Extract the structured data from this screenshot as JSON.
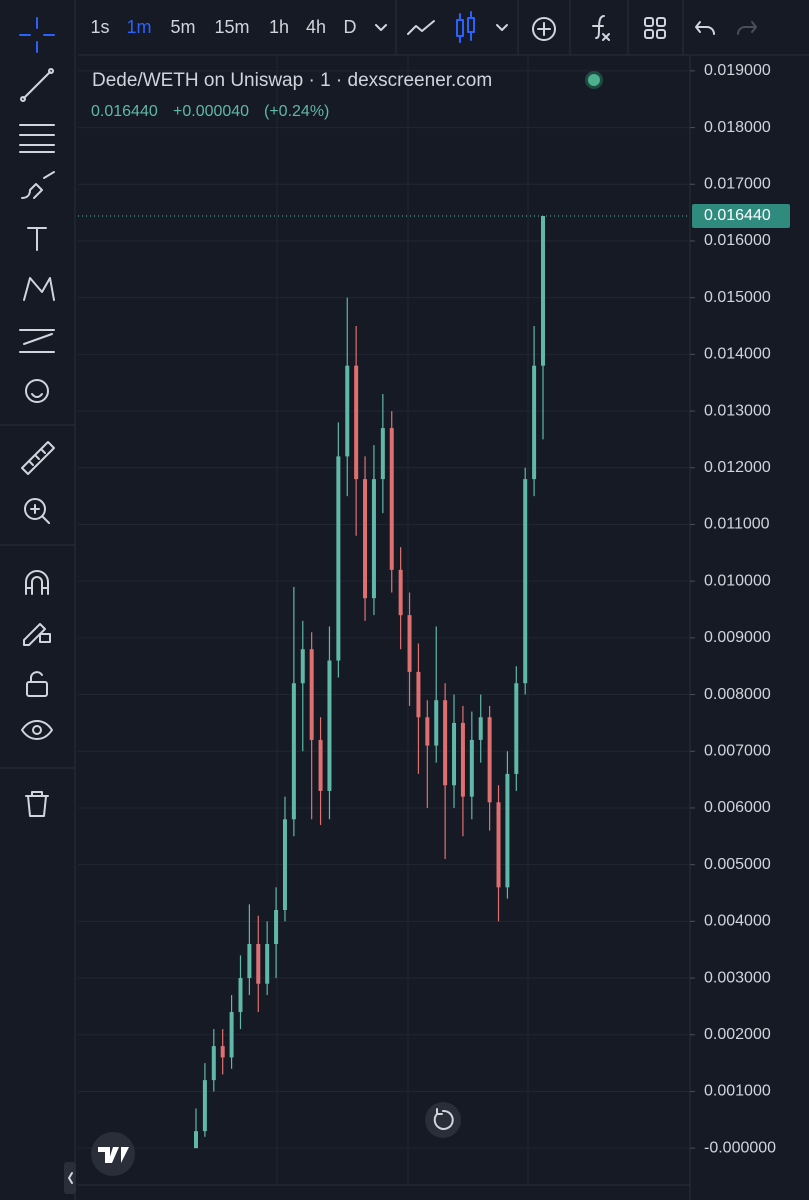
{
  "toolbar": {
    "intervals": [
      "1s",
      "1m",
      "5m",
      "15m",
      "1h",
      "4h",
      "D"
    ],
    "active_interval": 1
  },
  "chart_data": {
    "type": "candlestick",
    "title": "Dede/WETH on Uniswap · 1 · dexscreener.com",
    "last_price": {
      "value": 0.01644,
      "label": "0.016440"
    },
    "change": "+0.000040",
    "change_pct": "(+0.24%)",
    "up_color": "#5fb8a8",
    "down_color": "#e07070",
    "open": [
      0.0,
      0.0003,
      0.0012,
      0.0018,
      0.0016,
      0.0024,
      0.003,
      0.0036,
      0.0029,
      0.0036,
      0.0042,
      0.0058,
      0.0082,
      0.0088,
      0.0072,
      0.0063,
      0.0086,
      0.0122,
      0.0138,
      0.0118,
      0.0097,
      0.0118,
      0.0127,
      0.0102,
      0.0094,
      0.0084,
      0.0076,
      0.0071,
      0.0079,
      0.0064,
      0.0075,
      0.0062,
      0.0072,
      0.0076,
      0.0061,
      0.0046,
      0.0066,
      0.0082,
      0.0118,
      0.0138
    ],
    "high": [
      0.0007,
      0.0015,
      0.0021,
      0.0021,
      0.0027,
      0.0034,
      0.0043,
      0.0041,
      0.004,
      0.0046,
      0.0062,
      0.0099,
      0.0093,
      0.0091,
      0.0076,
      0.0092,
      0.0128,
      0.015,
      0.0145,
      0.0122,
      0.0124,
      0.0133,
      0.013,
      0.0106,
      0.0098,
      0.0089,
      0.0079,
      0.0092,
      0.0082,
      0.008,
      0.0078,
      0.0077,
      0.008,
      0.0078,
      0.0064,
      0.007,
      0.0085,
      0.012,
      0.0145,
      0.01644
    ],
    "low": [
      0.0,
      0.0002,
      0.001,
      0.0013,
      0.0014,
      0.0021,
      0.0027,
      0.0024,
      0.0027,
      0.003,
      0.004,
      0.0055,
      0.007,
      0.0058,
      0.0057,
      0.0058,
      0.0083,
      0.0115,
      0.0108,
      0.0093,
      0.0094,
      0.0112,
      0.0098,
      0.0088,
      0.0078,
      0.0066,
      0.006,
      0.0068,
      0.0051,
      0.006,
      0.0055,
      0.0058,
      0.0068,
      0.0056,
      0.004,
      0.0044,
      0.0063,
      0.008,
      0.0115,
      0.0125
    ],
    "close": [
      0.0003,
      0.0012,
      0.0018,
      0.0016,
      0.0024,
      0.003,
      0.0036,
      0.0029,
      0.0036,
      0.0042,
      0.0058,
      0.0082,
      0.0088,
      0.0072,
      0.0063,
      0.0086,
      0.0122,
      0.0138,
      0.0118,
      0.0097,
      0.0118,
      0.0127,
      0.0102,
      0.0094,
      0.0084,
      0.0076,
      0.0071,
      0.0079,
      0.0064,
      0.0075,
      0.0062,
      0.0072,
      0.0076,
      0.0061,
      0.0046,
      0.0066,
      0.0082,
      0.0118,
      0.0138,
      0.01644
    ],
    "ylim": [
      -0.00065,
      0.01928
    ],
    "yticks": [
      {
        "value": 0.019,
        "label": "0.019000"
      },
      {
        "value": 0.018,
        "label": "0.018000"
      },
      {
        "value": 0.017,
        "label": "0.017000"
      },
      {
        "value": 0.016,
        "label": "0.016000"
      },
      {
        "value": 0.015,
        "label": "0.015000"
      },
      {
        "value": 0.014,
        "label": "0.014000"
      },
      {
        "value": 0.013,
        "label": "0.013000"
      },
      {
        "value": 0.012,
        "label": "0.012000"
      },
      {
        "value": 0.011,
        "label": "0.011000"
      },
      {
        "value": 0.01,
        "label": "0.010000"
      },
      {
        "value": 0.009,
        "label": "0.009000"
      },
      {
        "value": 0.008,
        "label": "0.008000"
      },
      {
        "value": 0.007,
        "label": "0.007000"
      },
      {
        "value": 0.006,
        "label": "0.006000"
      },
      {
        "value": 0.005,
        "label": "0.005000"
      },
      {
        "value": 0.004,
        "label": "0.004000"
      },
      {
        "value": 0.003,
        "label": "0.003000"
      },
      {
        "value": 0.002,
        "label": "0.002000"
      },
      {
        "value": 0.001,
        "label": "0.001000"
      },
      {
        "value": 0,
        "label": "-0.000000"
      }
    ],
    "grid": true
  }
}
